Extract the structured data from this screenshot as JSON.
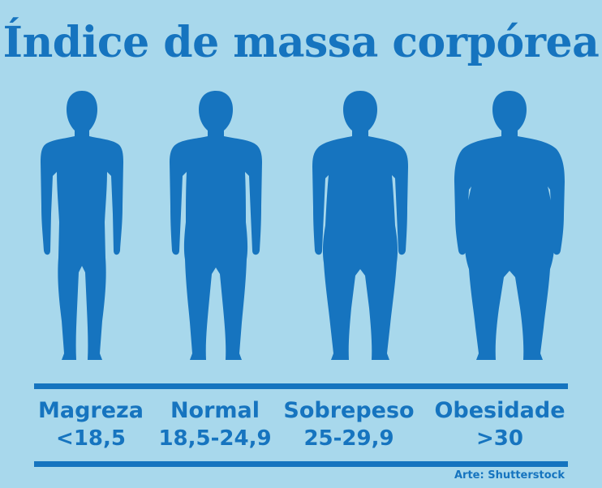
{
  "title": "Índice de massa corpórea",
  "categories": [
    {
      "label": "Magreza",
      "range": "<18,5"
    },
    {
      "label": "Normal",
      "range": "18,5-24,9"
    },
    {
      "label": "Sobrepeso",
      "range": "25-29,9"
    },
    {
      "label": "Obesidade",
      "range": ">30"
    }
  ],
  "credit": "Arte: Shutterstock",
  "colors": {
    "background": "#a8d8ec",
    "accent": "#1674bf"
  }
}
